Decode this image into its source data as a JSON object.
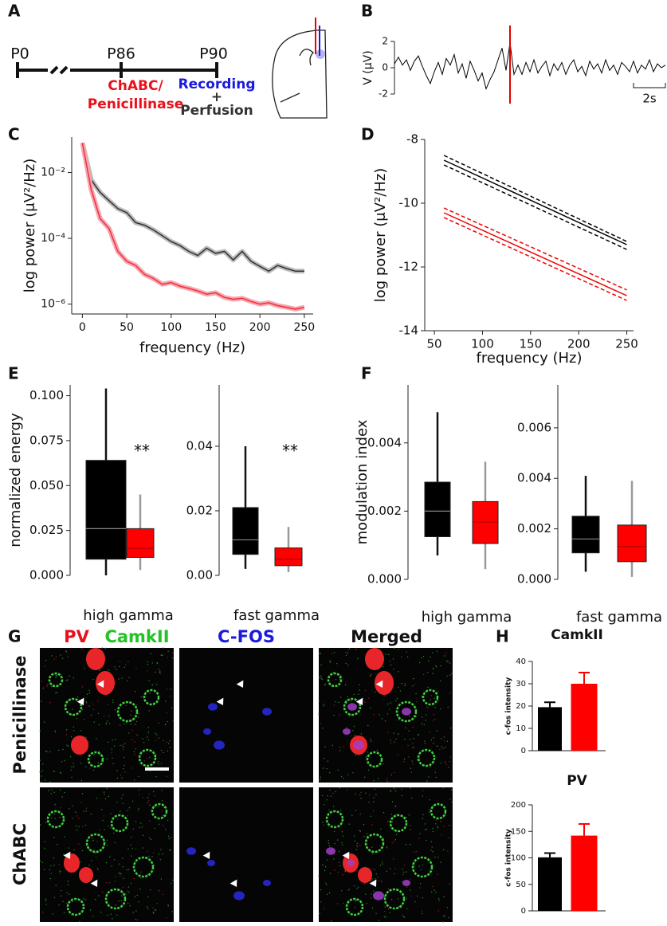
{
  "panel_a": {
    "letter": "A",
    "timepoints": [
      "P0",
      "P86",
      "P90"
    ],
    "treatment": [
      "ChABC/",
      "Penicillinase"
    ],
    "recording": "Recording",
    "plus": "+",
    "perfusion": "Perfusion"
  },
  "panel_g": {
    "letter": "G",
    "headers": [
      "PV",
      "CamkII",
      "C-FOS",
      "Merged"
    ],
    "rows": [
      "Penicillinase",
      "ChABC"
    ]
  },
  "chart_data": [
    {
      "panel": "B",
      "type": "line",
      "ylabel": "V (μV)",
      "xlim": [
        0,
        17
      ],
      "ylim": [
        -2,
        2
      ],
      "yticks": [
        2,
        0,
        -2
      ],
      "color": "#000",
      "values": [
        0.3,
        0.8,
        0.2,
        0.6,
        -0.2,
        0.5,
        0.9,
        0.1,
        -0.6,
        -1.2,
        -0.3,
        0.4,
        -0.5,
        0.7,
        0.2,
        1.0,
        -0.4,
        0.3,
        -0.8,
        0.5,
        -0.2,
        -1.0,
        -0.4,
        -1.6,
        -0.9,
        -0.3,
        0.6,
        1.5,
        -0.2,
        1.9,
        -0.5,
        0.2,
        -0.5,
        0.4,
        -0.3,
        0.6,
        -0.4,
        0.1,
        0.5,
        -0.6,
        0.3,
        -0.2,
        0.4,
        -0.5,
        0.2,
        0.6,
        -0.3,
        0.1,
        -0.6,
        0.5,
        -0.1,
        0.3,
        -0.4,
        0.6,
        -0.2,
        0.2,
        -0.5,
        0.4,
        0.1,
        -0.3,
        0.5,
        -0.4,
        0.2,
        -0.1,
        0.6,
        -0.3,
        0.3,
        0.0,
        0.2
      ],
      "event_x": 7.25,
      "event_color": "#d00",
      "scalebar": {
        "value": 2,
        "label": "2s"
      }
    },
    {
      "panel": "C",
      "type": "line",
      "xlabel": "frequency (Hz)",
      "ylabel": "log power (μV²/Hz)",
      "log_y": true,
      "x": [
        0,
        10,
        20,
        30,
        40,
        50,
        60,
        70,
        80,
        90,
        100,
        110,
        120,
        130,
        140,
        150,
        160,
        170,
        180,
        190,
        200,
        210,
        220,
        230,
        240,
        250
      ],
      "xlim": [
        -12,
        260
      ],
      "xticks": [
        0,
        50,
        100,
        150,
        200,
        250
      ],
      "ylim": [
        5e-07,
        0.12
      ],
      "yticks": [
        {
          "value": 0.01,
          "label": "10⁻²"
        },
        {
          "value": 0.0001,
          "label": "10⁻⁴"
        },
        {
          "value": 1e-06,
          "label": "10⁻⁶"
        }
      ],
      "series": [
        {
          "color": "#333",
          "band": "#bbbbbb",
          "values": [
            0.08,
            0.006,
            0.0025,
            0.0014,
            0.0008,
            0.0006,
            0.0003,
            0.00025,
            0.00018,
            0.00012,
            8e-05,
            6e-05,
            4e-05,
            3e-05,
            5e-05,
            3.5e-05,
            4e-05,
            2.2e-05,
            4e-05,
            2e-05,
            1.4e-05,
            1e-05,
            1.5e-05,
            1.2e-05,
            1e-05,
            1e-05
          ]
        },
        {
          "color": "#e33",
          "band": "#f7a6b4",
          "values": [
            0.08,
            0.003,
            0.0004,
            0.0002,
            4e-05,
            2e-05,
            1.5e-05,
            8e-06,
            6e-06,
            4e-06,
            4.5e-06,
            3.5e-06,
            3e-06,
            2.5e-06,
            2e-06,
            2.2e-06,
            1.6e-06,
            1.4e-06,
            1.5e-06,
            1.2e-06,
            1e-06,
            1.1e-06,
            9e-07,
            8e-07,
            7e-07,
            8e-07
          ]
        }
      ]
    },
    {
      "panel": "D",
      "type": "line",
      "xlabel": "frequency (Hz)",
      "ylabel": "log power (μV²/Hz)",
      "x": [
        60,
        250
      ],
      "xlim": [
        40,
        257
      ],
      "xticks": [
        50,
        100,
        150,
        200,
        250
      ],
      "ylim": [
        -14,
        -8
      ],
      "yticks": [
        -8,
        -10,
        -12,
        -14
      ],
      "series": [
        {
          "color": "#000",
          "values": [
            -8.65,
            -11.3
          ]
        },
        {
          "color": "#000",
          "dashed": true,
          "values": [
            -8.5,
            -11.2
          ]
        },
        {
          "color": "#000",
          "dashed": true,
          "values": [
            -8.8,
            -11.45
          ]
        },
        {
          "color": "#e00",
          "values": [
            -10.3,
            -12.9
          ]
        },
        {
          "color": "#e00",
          "dashed": true,
          "values": [
            -10.15,
            -12.72
          ]
        },
        {
          "color": "#e00",
          "dashed": true,
          "values": [
            -10.45,
            -13.05
          ]
        }
      ]
    },
    {
      "panel": "E",
      "type": "box",
      "ylabel": "normalized energy",
      "xlabel": "high gamma",
      "annotation": "**",
      "ylim": [
        0,
        0.106
      ],
      "yticks": [
        {
          "value": 0,
          "label": "0.000"
        },
        {
          "value": 0.025,
          "label": "0.025"
        },
        {
          "value": 0.05,
          "label": "0.050"
        },
        {
          "value": 0.075,
          "label": "0.075"
        },
        {
          "value": 0.1,
          "label": "0.100"
        }
      ],
      "series": [
        {
          "color": "#000",
          "values": [
            0.0,
            0.009,
            0.026,
            0.064,
            0.104
          ]
        },
        {
          "color": "#f00",
          "values": [
            0.003,
            0.01,
            0.015,
            0.026,
            0.045
          ]
        }
      ]
    },
    {
      "type": "box",
      "xlabel": "fast gamma",
      "annotation": "**",
      "ylim": [
        0,
        0.059
      ],
      "yticks": [
        {
          "value": 0,
          "label": "0.00"
        },
        0.02,
        0.04
      ],
      "series": [
        {
          "color": "#000",
          "values": [
            0.002,
            0.0065,
            0.011,
            0.021,
            0.04
          ]
        },
        {
          "color": "#f00",
          "values": [
            0.001,
            0.003,
            0.005,
            0.0085,
            0.015
          ]
        }
      ]
    },
    {
      "panel": "F",
      "type": "box",
      "ylabel": "modulation index",
      "xlabel": "high gamma",
      "ylim": [
        0,
        0.0057
      ],
      "yticks": [
        {
          "value": 0,
          "label": "0.000"
        },
        {
          "value": 0.002,
          "label": "0.002"
        },
        {
          "value": 0.004,
          "label": "0.004"
        }
      ],
      "series": [
        {
          "color": "#000",
          "values": [
            0.0007,
            0.00125,
            0.002,
            0.00285,
            0.0049
          ]
        },
        {
          "color": "#f00",
          "values": [
            0.0003,
            0.00105,
            0.00168,
            0.00228,
            0.00345
          ]
        }
      ]
    },
    {
      "type": "box",
      "xlabel": "fast gamma",
      "ylim": [
        0,
        0.0077
      ],
      "yticks": [
        {
          "value": 0,
          "label": "0.000"
        },
        {
          "value": 0.002,
          "label": "0.002"
        },
        {
          "value": 0.004,
          "label": "0.004"
        },
        {
          "value": 0.006,
          "label": "0.006"
        }
      ],
      "series": [
        {
          "color": "#000",
          "values": [
            0.0003,
            0.00105,
            0.0016,
            0.0025,
            0.0041
          ]
        },
        {
          "color": "#f00",
          "values": [
            0.0001,
            0.0007,
            0.0013,
            0.00215,
            0.0039
          ]
        }
      ]
    },
    {
      "panel": "H",
      "type": "bar",
      "title": "CamkII",
      "ylabel": "c-fos intensity",
      "ylim": [
        0,
        40
      ],
      "yticks": [
        0,
        10,
        20,
        30,
        40
      ],
      "values": [
        19.5,
        30
      ],
      "errors": [
        2.2,
        5
      ],
      "colors": [
        "#000",
        "#f00"
      ]
    },
    {
      "type": "bar",
      "title": "PV",
      "ylabel": "c-fos intensity",
      "ylim": [
        0,
        200
      ],
      "yticks": [
        0,
        50,
        100,
        150,
        200
      ],
      "values": [
        101,
        142
      ],
      "errors": [
        8,
        22
      ],
      "colors": [
        "#000",
        "#f00"
      ]
    }
  ]
}
